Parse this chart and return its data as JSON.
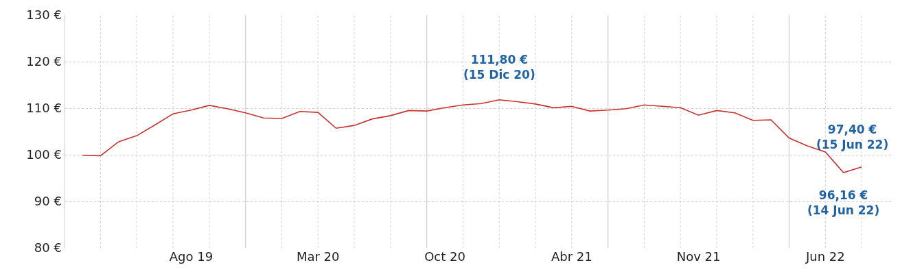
{
  "chart_data": {
    "type": "line",
    "categories": [
      null,
      null,
      null,
      null,
      null,
      null,
      "Ago 19",
      null,
      null,
      null,
      null,
      null,
      null,
      "Mar 20",
      null,
      null,
      null,
      null,
      null,
      null,
      "Oct 20",
      null,
      null,
      null,
      null,
      null,
      null,
      "Abr 21",
      null,
      null,
      null,
      null,
      null,
      null,
      "Nov 21",
      null,
      null,
      null,
      null,
      null,
      null,
      "Jun 22",
      null,
      null
    ],
    "series": [
      {
        "color": "#c8312b",
        "values": [
          99.9,
          99.8,
          102.8,
          104.1,
          106.4,
          108.8,
          109.6,
          110.6,
          109.9,
          109.0,
          107.9,
          107.8,
          109.3,
          109.1,
          105.7,
          106.3,
          107.7,
          108.4,
          109.5,
          109.4,
          110.1,
          110.7,
          111.0,
          111.8,
          111.4,
          110.9,
          110.1,
          110.4,
          109.4,
          109.6,
          109.9,
          110.7,
          110.4,
          110.1,
          108.5,
          109.5,
          109.0,
          107.4,
          107.5,
          103.6,
          101.9,
          100.6,
          96.16,
          97.4
        ]
      }
    ],
    "ylim": [
      80,
      130
    ],
    "yticks": [
      {
        "value": 80,
        "label": "80 €"
      },
      {
        "value": 90,
        "label": "90 €"
      },
      {
        "value": 100,
        "label": "100 €"
      },
      {
        "value": 110,
        "label": "110 €"
      },
      {
        "value": 120,
        "label": "120 €"
      },
      {
        "value": 130,
        "label": "130 €"
      }
    ],
    "grid": true,
    "marker": "none",
    "line_style": "solid",
    "annotations": [
      {
        "text": "111,80 €\n(15 Dic 20)",
        "y": 111.8
      },
      {
        "text": "97,40 €\n(15 Jun 22)",
        "y": 97.4
      },
      {
        "text": "96,16 €\n(14 Jun 22)",
        "y": 96.16
      }
    ]
  }
}
